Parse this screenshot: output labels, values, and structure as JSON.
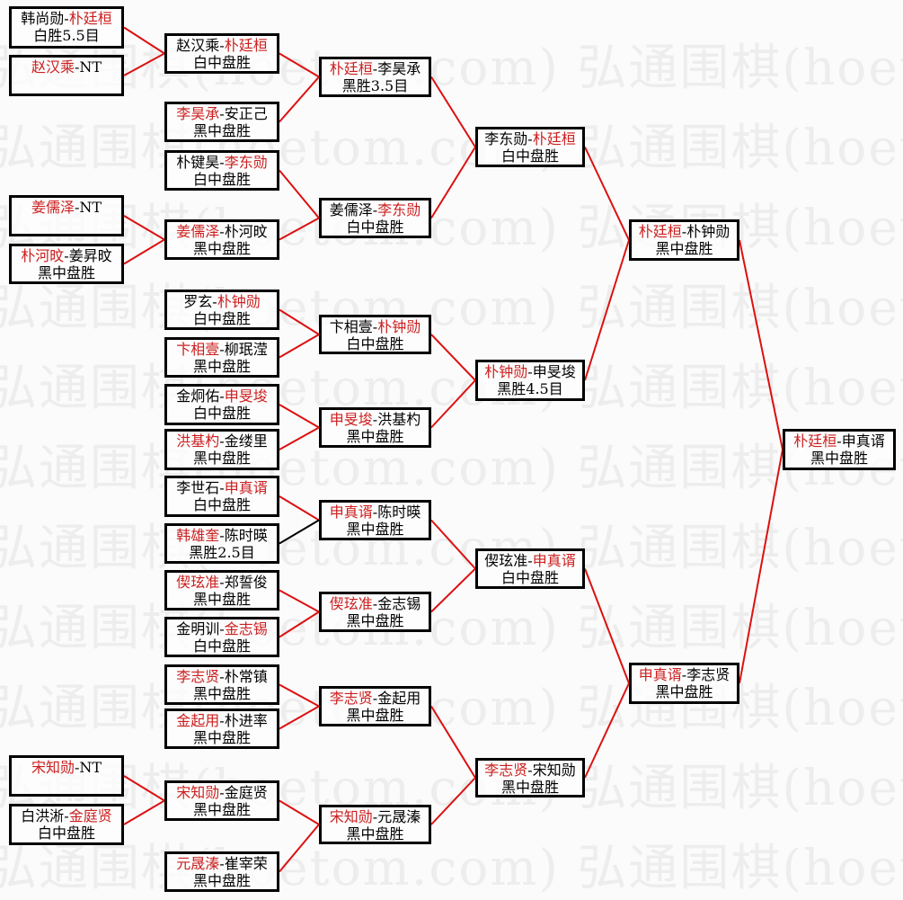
{
  "watermark": {
    "text": "弘通围棋(hoetom.com)",
    "color": "#ededed"
  },
  "colors": {
    "winner_red": "#cc1f1f",
    "line_red": "#dd1010",
    "line_black": "#000000",
    "box_border": "#000000",
    "text_black": "#000000",
    "background": "#fbfbfb"
  },
  "separator": "-",
  "rounds": [
    {
      "name": "round-1",
      "matches": [
        {
          "id": "m1",
          "p1": "韩尚勋",
          "p1_winner": false,
          "p2": "朴廷桓",
          "p2_winner": true,
          "result": "白胜5.5目"
        },
        {
          "id": "m2",
          "p1": "赵汉乘",
          "p1_winner": true,
          "p2": "NT",
          "p2_winner": false,
          "result": ""
        },
        {
          "id": "m3",
          "p1": "姜儒泽",
          "p1_winner": true,
          "p2": "NT",
          "p2_winner": false,
          "result": ""
        },
        {
          "id": "m4",
          "p1": "朴河旼",
          "p1_winner": true,
          "p2": "姜昇旼",
          "p2_winner": false,
          "result": "黑中盘胜"
        },
        {
          "id": "m5",
          "p1": "宋知勋",
          "p1_winner": true,
          "p2": "NT",
          "p2_winner": false,
          "result": ""
        },
        {
          "id": "m6",
          "p1": "白洪淅",
          "p1_winner": false,
          "p2": "金庭贤",
          "p2_winner": true,
          "result": "白中盘胜"
        }
      ]
    },
    {
      "name": "round-2",
      "matches": [
        {
          "id": "m7",
          "p1": "赵汉乘",
          "p1_winner": false,
          "p2": "朴廷桓",
          "p2_winner": true,
          "result": "白中盘胜"
        },
        {
          "id": "m8",
          "p1": "李昊承",
          "p1_winner": true,
          "p2": "安正己",
          "p2_winner": false,
          "result": "黑中盘胜"
        },
        {
          "id": "m9",
          "p1": "朴键昊",
          "p1_winner": false,
          "p2": "李东勋",
          "p2_winner": true,
          "result": "白中盘胜"
        },
        {
          "id": "m10",
          "p1": "姜儒泽",
          "p1_winner": true,
          "p2": "朴河旼",
          "p2_winner": false,
          "result": "黑中盘胜"
        },
        {
          "id": "m11",
          "p1": "罗玄",
          "p1_winner": false,
          "p2": "朴钟勋",
          "p2_winner": true,
          "result": "白中盘胜"
        },
        {
          "id": "m12",
          "p1": "卞相壹",
          "p1_winner": true,
          "p2": "柳珉滢",
          "p2_winner": false,
          "result": "黑中盘胜"
        },
        {
          "id": "m13",
          "p1": "金炯佑",
          "p1_winner": false,
          "p2": "申旻埈",
          "p2_winner": true,
          "result": "白中盘胜"
        },
        {
          "id": "m14",
          "p1": "洪基杓",
          "p1_winner": true,
          "p2": "金缕里",
          "p2_winner": false,
          "result": "黑中盘胜"
        },
        {
          "id": "m15",
          "p1": "李世石",
          "p1_winner": false,
          "p2": "申真谞",
          "p2_winner": true,
          "result": "白中盘胜"
        },
        {
          "id": "m16",
          "p1": "韩雄奎",
          "p1_winner": true,
          "p2": "陈时暎",
          "p2_winner": false,
          "result": "黑胜2.5目"
        },
        {
          "id": "m17",
          "p1": "偰玹准",
          "p1_winner": true,
          "p2": "郑誓俊",
          "p2_winner": false,
          "result": "黑中盘胜"
        },
        {
          "id": "m18",
          "p1": "金明训",
          "p1_winner": false,
          "p2": "金志锡",
          "p2_winner": true,
          "result": "白中盘胜"
        },
        {
          "id": "m19",
          "p1": "李志贤",
          "p1_winner": true,
          "p2": "朴常镇",
          "p2_winner": false,
          "result": "黑中盘胜"
        },
        {
          "id": "m20",
          "p1": "金起用",
          "p1_winner": true,
          "p2": "朴进率",
          "p2_winner": false,
          "result": "黑中盘胜"
        },
        {
          "id": "m21",
          "p1": "宋知勋",
          "p1_winner": true,
          "p2": "金庭贤",
          "p2_winner": false,
          "result": "黑中盘胜"
        },
        {
          "id": "m22",
          "p1": "元晟溱",
          "p1_winner": true,
          "p2": "崔宰荣",
          "p2_winner": false,
          "result": "黑中盘胜"
        }
      ]
    },
    {
      "name": "round-3",
      "matches": [
        {
          "id": "m23",
          "p1": "朴廷桓",
          "p1_winner": true,
          "p2": "李昊承",
          "p2_winner": false,
          "result": "黑胜3.5目"
        },
        {
          "id": "m24",
          "p1": "姜儒泽",
          "p1_winner": false,
          "p2": "李东勋",
          "p2_winner": true,
          "result": "白中盘胜"
        },
        {
          "id": "m25",
          "p1": "卞相壹",
          "p1_winner": false,
          "p2": "朴钟勋",
          "p2_winner": true,
          "result": "白中盘胜"
        },
        {
          "id": "m26",
          "p1": "申旻埈",
          "p1_winner": true,
          "p2": "洪基杓",
          "p2_winner": false,
          "result": "黑中盘胜"
        },
        {
          "id": "m27",
          "p1": "申真谞",
          "p1_winner": true,
          "p2": "陈时暎",
          "p2_winner": false,
          "result": "黑中盘胜"
        },
        {
          "id": "m28",
          "p1": "偰玹准",
          "p1_winner": true,
          "p2": "金志锡",
          "p2_winner": false,
          "result": "黑中盘胜"
        },
        {
          "id": "m29",
          "p1": "李志贤",
          "p1_winner": true,
          "p2": "金起用",
          "p2_winner": false,
          "result": "黑中盘胜"
        },
        {
          "id": "m30",
          "p1": "宋知勋",
          "p1_winner": true,
          "p2": "元晟溱",
          "p2_winner": false,
          "result": "黑中盘胜"
        }
      ]
    },
    {
      "name": "quarterfinal",
      "matches": [
        {
          "id": "m31",
          "p1": "李东勋",
          "p1_winner": false,
          "p2": "朴廷桓",
          "p2_winner": true,
          "result": "白中盘胜"
        },
        {
          "id": "m32",
          "p1": "朴钟勋",
          "p1_winner": true,
          "p2": "申旻埈",
          "p2_winner": false,
          "result": "黑胜4.5目"
        },
        {
          "id": "m33",
          "p1": "偰玹准",
          "p1_winner": false,
          "p2": "申真谞",
          "p2_winner": true,
          "result": "白中盘胜"
        },
        {
          "id": "m34",
          "p1": "李志贤",
          "p1_winner": true,
          "p2": "宋知勋",
          "p2_winner": false,
          "result": "黑中盘胜"
        }
      ]
    },
    {
      "name": "semifinal",
      "matches": [
        {
          "id": "m35",
          "p1": "朴廷桓",
          "p1_winner": true,
          "p2": "朴钟勋",
          "p2_winner": false,
          "result": "黑中盘胜"
        },
        {
          "id": "m36",
          "p1": "申真谞",
          "p1_winner": true,
          "p2": "李志贤",
          "p2_winner": false,
          "result": "黑中盘胜"
        }
      ]
    },
    {
      "name": "final",
      "matches": [
        {
          "id": "m37",
          "p1": "朴廷桓",
          "p1_winner": true,
          "p2": "申真谞",
          "p2_winner": false,
          "result": "黑中盘胜"
        }
      ]
    }
  ],
  "connections": [
    {
      "from": "m1",
      "to": "m7",
      "color": "red"
    },
    {
      "from": "m2",
      "to": "m7",
      "color": "red"
    },
    {
      "from": "m3",
      "to": "m10",
      "color": "red"
    },
    {
      "from": "m4",
      "to": "m10",
      "color": "red"
    },
    {
      "from": "m5",
      "to": "m21",
      "color": "red"
    },
    {
      "from": "m6",
      "to": "m21",
      "color": "red"
    },
    {
      "from": "m7",
      "to": "m23",
      "color": "red"
    },
    {
      "from": "m8",
      "to": "m23",
      "color": "red"
    },
    {
      "from": "m9",
      "to": "m24",
      "color": "red"
    },
    {
      "from": "m10",
      "to": "m24",
      "color": "red"
    },
    {
      "from": "m11",
      "to": "m25",
      "color": "red"
    },
    {
      "from": "m12",
      "to": "m25",
      "color": "red"
    },
    {
      "from": "m13",
      "to": "m26",
      "color": "red"
    },
    {
      "from": "m14",
      "to": "m26",
      "color": "red"
    },
    {
      "from": "m15",
      "to": "m27",
      "color": "red"
    },
    {
      "from": "m16",
      "to": "m27",
      "color": "black"
    },
    {
      "from": "m17",
      "to": "m28",
      "color": "red"
    },
    {
      "from": "m18",
      "to": "m28",
      "color": "red"
    },
    {
      "from": "m19",
      "to": "m29",
      "color": "red"
    },
    {
      "from": "m20",
      "to": "m29",
      "color": "red"
    },
    {
      "from": "m21",
      "to": "m30",
      "color": "red"
    },
    {
      "from": "m22",
      "to": "m30",
      "color": "red"
    },
    {
      "from": "m23",
      "to": "m31",
      "color": "red"
    },
    {
      "from": "m24",
      "to": "m31",
      "color": "red"
    },
    {
      "from": "m25",
      "to": "m32",
      "color": "red"
    },
    {
      "from": "m26",
      "to": "m32",
      "color": "red"
    },
    {
      "from": "m27",
      "to": "m33",
      "color": "red"
    },
    {
      "from": "m28",
      "to": "m33",
      "color": "red"
    },
    {
      "from": "m29",
      "to": "m34",
      "color": "red"
    },
    {
      "from": "m30",
      "to": "m34",
      "color": "red"
    },
    {
      "from": "m31",
      "to": "m35",
      "color": "red"
    },
    {
      "from": "m32",
      "to": "m35",
      "color": "red"
    },
    {
      "from": "m33",
      "to": "m36",
      "color": "red"
    },
    {
      "from": "m34",
      "to": "m36",
      "color": "red"
    },
    {
      "from": "m35",
      "to": "m37",
      "color": "red"
    },
    {
      "from": "m36",
      "to": "m37",
      "color": "red"
    }
  ]
}
